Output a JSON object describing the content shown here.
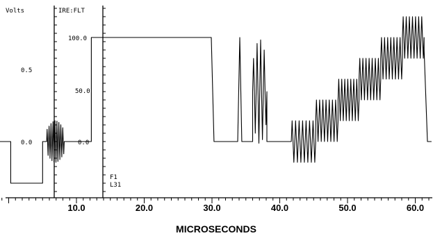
{
  "chart_data": {
    "type": "line",
    "title": "",
    "xlabel": "MICROSECONDS",
    "x_ticks": [
      10.0,
      20.0,
      30.0,
      40.0,
      50.0,
      60.0
    ],
    "x_tick_labels": [
      "10.0",
      "20.0",
      "30.0",
      "40.0",
      "50.0",
      "60.0"
    ],
    "xlim": [
      -1.3,
      62.4
    ],
    "grid": false,
    "volts_scale": {
      "label": "Volts",
      "tick_labels": [
        "0.5",
        "0.0"
      ],
      "ticks": [
        0.5,
        0.0
      ]
    },
    "ire_scale": {
      "label": "IRE:FLT",
      "tick_labels": [
        "100.0",
        "50.0",
        "0.0"
      ],
      "ticks": [
        100,
        50,
        0
      ],
      "ylim": [
        -52,
        115
      ]
    },
    "annotations": [
      "F1",
      "L31"
    ],
    "series": [
      {
        "unit": "IRE",
        "segments": [
          {
            "kind": "line",
            "points": [
              [
                -1.3,
                0
              ],
              [
                0.3,
                0
              ],
              [
                0.3,
                -40
              ],
              [
                5.0,
                -40
              ],
              [
                5.0,
                0
              ],
              [
                5.6,
                0
              ]
            ]
          },
          {
            "kind": "burst",
            "x_start": 5.6,
            "x_end": 8.2,
            "center": 0,
            "amplitude": 20,
            "cycles": 9
          },
          {
            "kind": "line",
            "points": [
              [
                8.2,
                0
              ],
              [
                12.2,
                0
              ],
              [
                12.2,
                100
              ],
              [
                29.9,
                100
              ],
              [
                30.3,
                0
              ],
              [
                33.8,
                0
              ],
              [
                34.1,
                100
              ],
              [
                34.4,
                0
              ],
              [
                36.0,
                0
              ]
            ]
          },
          {
            "kind": "burst",
            "x_start": 36.0,
            "x_end": 38.1,
            "center": 48,
            "amplitude": 50,
            "cycles": 4
          },
          {
            "kind": "line",
            "points": [
              [
                38.1,
                0
              ],
              [
                41.7,
                0
              ]
            ]
          },
          {
            "kind": "staircase",
            "x_start": 41.7,
            "x_end": 61.3,
            "steps": [
              {
                "x_start": 41.7,
                "x_end": 45.3,
                "center": 0
              },
              {
                "x_start": 45.3,
                "x_end": 48.6,
                "center": 20
              },
              {
                "x_start": 48.6,
                "x_end": 51.7,
                "center": 40
              },
              {
                "x_start": 51.7,
                "x_end": 54.9,
                "center": 60
              },
              {
                "x_start": 54.9,
                "x_end": 58.1,
                "center": 80
              },
              {
                "x_start": 58.1,
                "x_end": 61.3,
                "center": 100
              }
            ],
            "amplitude": 20,
            "cycles_per_step": 7
          },
          {
            "kind": "line",
            "points": [
              [
                61.3,
                88
              ],
              [
                61.8,
                0
              ],
              [
                62.4,
                0
              ]
            ]
          }
        ]
      }
    ]
  }
}
